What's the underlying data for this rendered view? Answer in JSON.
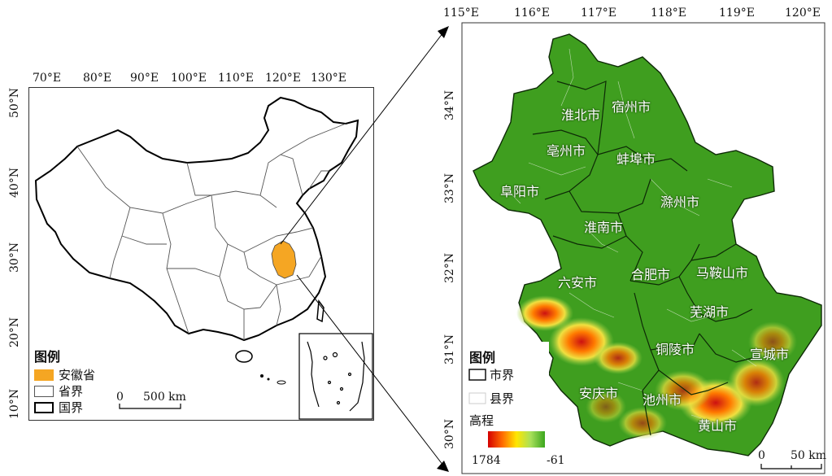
{
  "left_map": {
    "lon_ticks": [
      "70°E",
      "80°E",
      "90°E",
      "100°E",
      "110°E",
      "120°E",
      "130°E"
    ],
    "lat_ticks": [
      "50°N",
      "40°N",
      "30°N",
      "20°N",
      "10°N"
    ],
    "legend": {
      "title": "图例",
      "items": [
        {
          "label": "安徽省",
          "color": "#f5a623",
          "style": "fill"
        },
        {
          "label": "省界",
          "color": "#555555",
          "style": "thin"
        },
        {
          "label": "国界",
          "color": "#000000",
          "style": "thick"
        }
      ]
    },
    "scale": {
      "zero": "0",
      "label": "500 km"
    }
  },
  "right_map": {
    "lon_ticks": [
      "115°E",
      "116°E",
      "117°E",
      "118°E",
      "119°E",
      "120°E"
    ],
    "lat_ticks": [
      "34°N",
      "33°N",
      "32°N",
      "31°N",
      "30°N"
    ],
    "cities": [
      {
        "name": "淮北市"
      },
      {
        "name": "宿州市"
      },
      {
        "name": "亳州市"
      },
      {
        "name": "蚌埠市"
      },
      {
        "name": "阜阳市"
      },
      {
        "name": "滁州市"
      },
      {
        "name": "淮南市"
      },
      {
        "name": "六安市"
      },
      {
        "name": "合肥市"
      },
      {
        "name": "马鞍山市"
      },
      {
        "name": "芜湖市"
      },
      {
        "name": "铜陵市"
      },
      {
        "name": "宣城市"
      },
      {
        "name": "安庆市"
      },
      {
        "name": "池州市"
      },
      {
        "name": "黄山市"
      }
    ],
    "legend": {
      "title": "图例",
      "items": [
        {
          "label": "市界",
          "style": "dark"
        },
        {
          "label": "县界",
          "style": "light"
        }
      ],
      "elevation_title": "高程",
      "elevation_max": "1784",
      "elevation_min": "-61",
      "gradient": [
        "#d40000",
        "#ff6a00",
        "#ffe600",
        "#a8e05a",
        "#3aa61e"
      ]
    },
    "scale": {
      "zero": "0",
      "label": "50 km"
    }
  },
  "colors": {
    "anhui": "#f5a623",
    "plain_green": "#3f9e1f",
    "mountain_red": "#cc1111"
  }
}
